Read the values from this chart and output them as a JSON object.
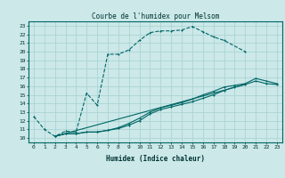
{
  "title": "Courbe de l'humidex pour Melsom",
  "xlabel": "Humidex (Indice chaleur)",
  "bg_color": "#cce8e8",
  "grid_color": "#aad4d4",
  "line_color": "#006666",
  "xlim": [
    -0.5,
    23.5
  ],
  "ylim": [
    9.5,
    23.5
  ],
  "xticks": [
    0,
    1,
    2,
    3,
    4,
    5,
    6,
    7,
    8,
    9,
    10,
    11,
    12,
    13,
    14,
    15,
    16,
    17,
    18,
    19,
    20,
    21,
    22,
    23
  ],
  "yticks": [
    10,
    11,
    12,
    13,
    14,
    15,
    16,
    17,
    18,
    19,
    20,
    21,
    22,
    23
  ],
  "line1_x": [
    0,
    1,
    2,
    3,
    4,
    5,
    6,
    7,
    8,
    9,
    10,
    11,
    12,
    13,
    14,
    15,
    16,
    17,
    18,
    20
  ],
  "line1_y": [
    12.5,
    11.0,
    10.2,
    10.8,
    10.7,
    15.2,
    13.8,
    19.7,
    19.7,
    20.2,
    21.3,
    22.2,
    22.4,
    22.4,
    22.5,
    22.9,
    22.3,
    21.7,
    21.3,
    20.0
  ],
  "line2_x": [
    2,
    3,
    4,
    5,
    6,
    7,
    8,
    9,
    10,
    11,
    12,
    13,
    14,
    15,
    16,
    17,
    18,
    19,
    20,
    21,
    22,
    23
  ],
  "line2_y": [
    10.2,
    10.5,
    10.5,
    10.7,
    10.7,
    10.9,
    11.1,
    11.5,
    12.0,
    12.8,
    13.3,
    13.6,
    13.9,
    14.2,
    14.6,
    15.0,
    15.5,
    15.9,
    16.2,
    16.6,
    16.3,
    16.2
  ],
  "line3_x": [
    2,
    3,
    4,
    5,
    6,
    7,
    8,
    9,
    10,
    11,
    12,
    13,
    14,
    15,
    16,
    17,
    18,
    19,
    20,
    21,
    22,
    23
  ],
  "line3_y": [
    10.2,
    10.5,
    10.5,
    10.7,
    10.7,
    10.9,
    11.2,
    11.7,
    12.3,
    13.0,
    13.5,
    13.8,
    14.1,
    14.5,
    15.0,
    15.4,
    15.9,
    16.1,
    16.3,
    16.9,
    16.6,
    16.3
  ],
  "line4_x": [
    2,
    20
  ],
  "line4_y": [
    10.2,
    16.2
  ]
}
